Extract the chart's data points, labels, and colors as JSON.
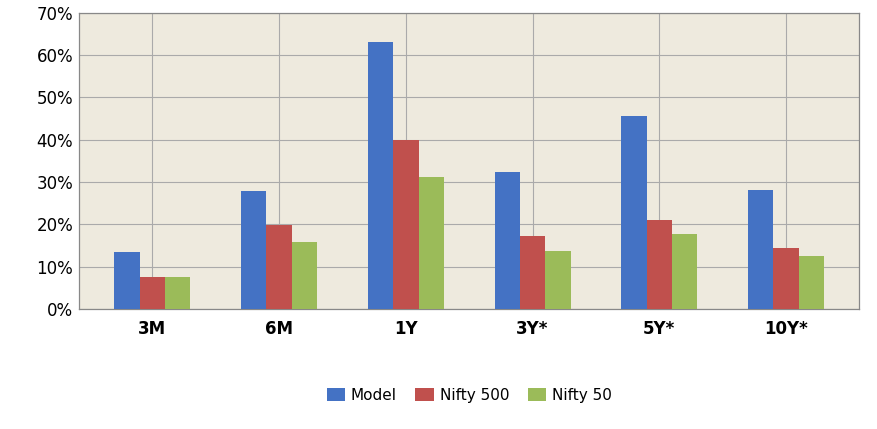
{
  "categories": [
    "3M",
    "6M",
    "1Y",
    "3Y*",
    "5Y*",
    "10Y*"
  ],
  "series": {
    "Model": [
      0.135,
      0.278,
      0.63,
      0.323,
      0.455,
      0.28
    ],
    "Nifty 500": [
      0.075,
      0.198,
      0.4,
      0.172,
      0.21,
      0.145
    ],
    "Nifty 50": [
      0.075,
      0.158,
      0.312,
      0.138,
      0.178,
      0.125
    ]
  },
  "colors": {
    "Model": "#4472C4",
    "Nifty 500": "#C0504D",
    "Nifty 50": "#9BBB59"
  },
  "ylim": [
    0,
    0.7
  ],
  "yticks": [
    0.0,
    0.1,
    0.2,
    0.3,
    0.4,
    0.5,
    0.6,
    0.7
  ],
  "plot_bg_color": "#EEEADE",
  "fig_bg_color": "#FFFFFF",
  "grid_color": "#AAAAAA",
  "bar_width": 0.2,
  "legend_labels": [
    "Model",
    "Nifty 500",
    "Nifty 50"
  ],
  "figsize": [
    8.77,
    4.29
  ],
  "dpi": 100
}
